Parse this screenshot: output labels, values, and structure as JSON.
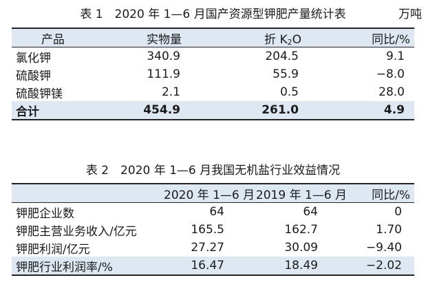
{
  "table1": {
    "caption": "表 1　2020 年 1—6 月国产资源型钾肥产量统计表",
    "unit": "万吨",
    "headers": {
      "product": "产品",
      "physical": "实物量",
      "k2o_prefix": "折 K",
      "k2o_sub": "2",
      "k2o_suffix": "O",
      "yoy": "同比/%"
    },
    "rows": [
      {
        "product": "氯化钾",
        "physical": "340.9",
        "k2o": "204.5",
        "yoy": "9.1"
      },
      {
        "product": "硫酸钾",
        "physical": "111.9",
        "k2o": "55.9",
        "yoy": "−8.0"
      },
      {
        "product": "硫酸钾镁",
        "physical": "2.1",
        "k2o": "0.5",
        "yoy": "28.0"
      }
    ],
    "total": {
      "product": "合计",
      "physical": "454.9",
      "k2o": "261.0",
      "yoy": "4.9"
    }
  },
  "table2": {
    "caption": "表 2　2020 年 1—6 月我国无机盐行业效益情况",
    "headers": {
      "item": "",
      "y2020": "2020 年 1—6 月",
      "y2019": "2019 年 1—6 月",
      "yoy": "同比/%"
    },
    "rows": [
      {
        "item": "钾肥企业数",
        "y2020": "64",
        "y2019": "64",
        "yoy": "0"
      },
      {
        "item": "钾肥主营业务收入/亿元",
        "y2020": "165.5",
        "y2019": "162.7",
        "yoy": "1.70"
      },
      {
        "item": "钾肥利润/亿元",
        "y2020": "27.27",
        "y2019": "30.09",
        "yoy": "−9.40"
      },
      {
        "item": "钾肥行业利润率/%",
        "y2020": "16.47",
        "y2019": "18.49",
        "yoy": "−2.02"
      }
    ]
  }
}
